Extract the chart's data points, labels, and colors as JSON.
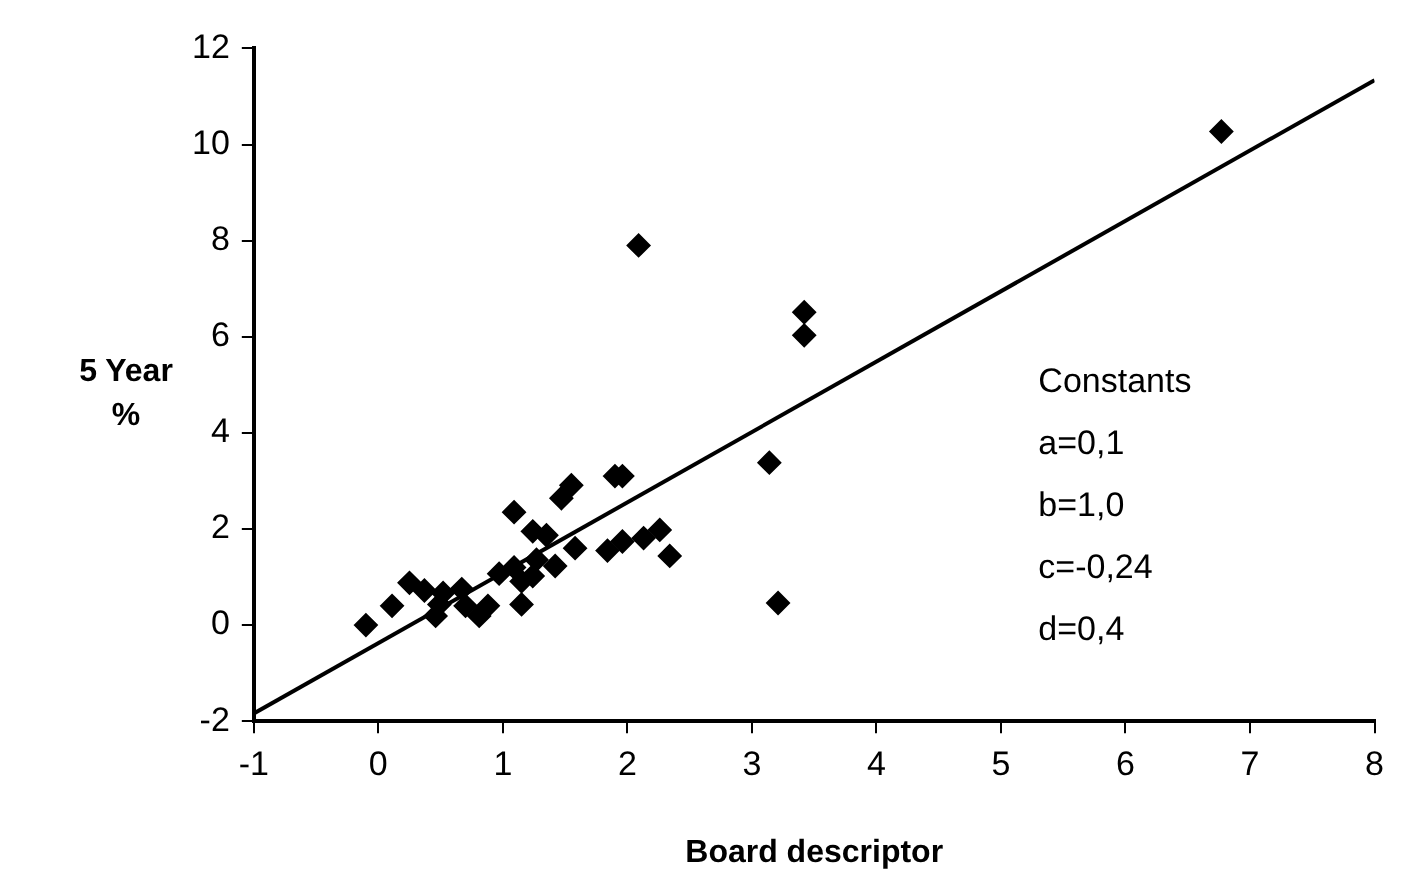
{
  "chart_data": {
    "type": "scatter",
    "xlabel": "Board descriptor",
    "ylabel": "5 Year %",
    "xlim": [
      -1,
      8
    ],
    "xticks": [
      -1,
      0,
      1,
      2,
      3,
      4,
      5,
      6,
      7,
      8
    ],
    "ylim": [
      -2,
      12
    ],
    "yticks": [
      -2,
      0,
      2,
      4,
      6,
      8,
      10,
      12
    ],
    "marker": "diamond",
    "legend": false,
    "annotations": [
      "Constants",
      "a=0,1",
      "b=1,0",
      "c=-0,24",
      "d=0,4"
    ],
    "series": [
      {
        "color": "#000000",
        "x": [
          -0.1,
          0.11,
          0.25,
          0.37,
          0.46,
          0.49,
          0.52,
          0.67,
          0.7,
          0.81,
          0.88,
          0.97,
          1.09,
          1.09,
          1.15,
          1.15,
          1.24,
          1.27,
          1.24,
          1.35,
          1.42,
          1.47,
          1.55,
          1.58,
          1.84,
          1.9,
          1.96,
          1.96,
          2.09,
          2.13,
          2.26,
          2.34,
          3.14,
          3.21,
          3.42,
          3.42,
          6.77
        ],
        "values": [
          0,
          0.4,
          0.88,
          0.72,
          0.19,
          0.43,
          0.67,
          0.75,
          0.4,
          0.19,
          0.4,
          1.07,
          1.2,
          2.35,
          0.91,
          0.43,
          1.02,
          1.36,
          1.95,
          1.87,
          1.23,
          2.64,
          2.91,
          1.6,
          1.55,
          3.1,
          3.1,
          1.74,
          7.9,
          1.81,
          1.98,
          1.44,
          3.38,
          0.46,
          6.51,
          6.03,
          10.27
        ]
      },
      {
        "type": "line",
        "color": "#000000",
        "marker": "none",
        "x": [
          -1,
          8
        ],
        "values": [
          -1.84,
          11.34
        ]
      }
    ]
  }
}
